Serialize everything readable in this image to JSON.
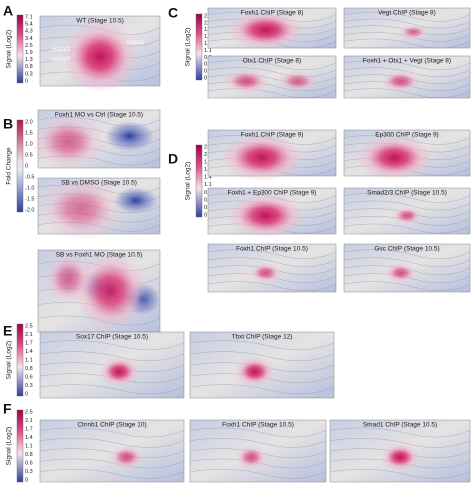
{
  "panels": [
    {
      "label": "A",
      "colorbar": {
        "label": "Signal (Log2)",
        "ticks": [
          "7.1",
          "5.4",
          "4.3",
          "3.4",
          "2.6",
          "1.9",
          "1.3",
          "0.8",
          "0.3",
          "0"
        ]
      },
      "maps": [
        {
          "title": "WT (Stage 10.5)",
          "annotations": [
            "nodal1",
            "nodal3",
            "nodal2"
          ]
        }
      ]
    },
    {
      "label": "B",
      "colorbar": {
        "label": "Fold Change",
        "ticks": [
          "2.0",
          "1.5",
          "1.0",
          "0.5",
          "0",
          "-0.5",
          "-1.0",
          "-1.5",
          "-2.0"
        ]
      },
      "maps": [
        {
          "title": "Foxh1 MO vs Ctrl (Stage 10.5)"
        },
        {
          "title": "SB vs DMSO (Stage 10.5)"
        },
        {
          "title": "SB vs Foxh1 MO (Stage 10.5)"
        }
      ]
    },
    {
      "label": "C",
      "colorbar": {
        "label": "Signal (Log2)",
        "ticks": [
          "2.5",
          "2.2",
          "1.9",
          "1.7",
          "1.4",
          "1.1",
          "0.8",
          "0.6",
          "0.3",
          "0"
        ]
      },
      "maps": [
        {
          "title": "Foxh1 ChIP (Stage 8)"
        },
        {
          "title": "Vegt ChIP (Stage 8)"
        },
        {
          "title": "Otx1 ChIP (Stage 8)"
        },
        {
          "title": "Foxh1 + Otx1 + Vegt (Stage 8)"
        }
      ]
    },
    {
      "label": "D",
      "colorbar": {
        "label": "Signal (Log2)",
        "ticks": [
          "2.5",
          "2.2",
          "1.9",
          "1.7",
          "1.4",
          "1.1",
          "0.8",
          "0.6",
          "0.3",
          "0"
        ]
      },
      "maps": [
        {
          "title": "Foxh1 ChIP (Stage 9)"
        },
        {
          "title": "Ep300 ChIP (Stage 9)"
        },
        {
          "title": "Foxh1 + Ep300 ChIP (Stage 9)"
        },
        {
          "title": "Smad2/3 ChIP (Stage 10.5)"
        },
        {
          "title": "Foxh1 ChIP (Stage 10.5)"
        },
        {
          "title": "Gsc ChIP (Stage 10.5)"
        }
      ]
    },
    {
      "label": "E",
      "colorbar": {
        "label": "Signal (Log2)",
        "ticks": [
          "2.5",
          "2.1",
          "1.7",
          "1.4",
          "1.1",
          "0.8",
          "0.6",
          "0.3",
          "0"
        ]
      },
      "maps": [
        {
          "title": "Sox17 ChIP (Stage 10.5)"
        },
        {
          "title": "Tbxt ChIP (Stage 12)"
        }
      ]
    },
    {
      "label": "F",
      "colorbar": {
        "label": "Signal (Log2)",
        "ticks": [
          "2.5",
          "2.1",
          "1.7",
          "1.4",
          "1.1",
          "0.8",
          "0.6",
          "0.3",
          "0"
        ]
      },
      "maps": [
        {
          "title": "Ctnnb1 ChIP (Stage 10)"
        },
        {
          "title": "Foxh1 ChIP (Stage 10.5)"
        },
        {
          "title": "Smad1 ChIP (Stage 10.5)"
        }
      ]
    }
  ]
}
